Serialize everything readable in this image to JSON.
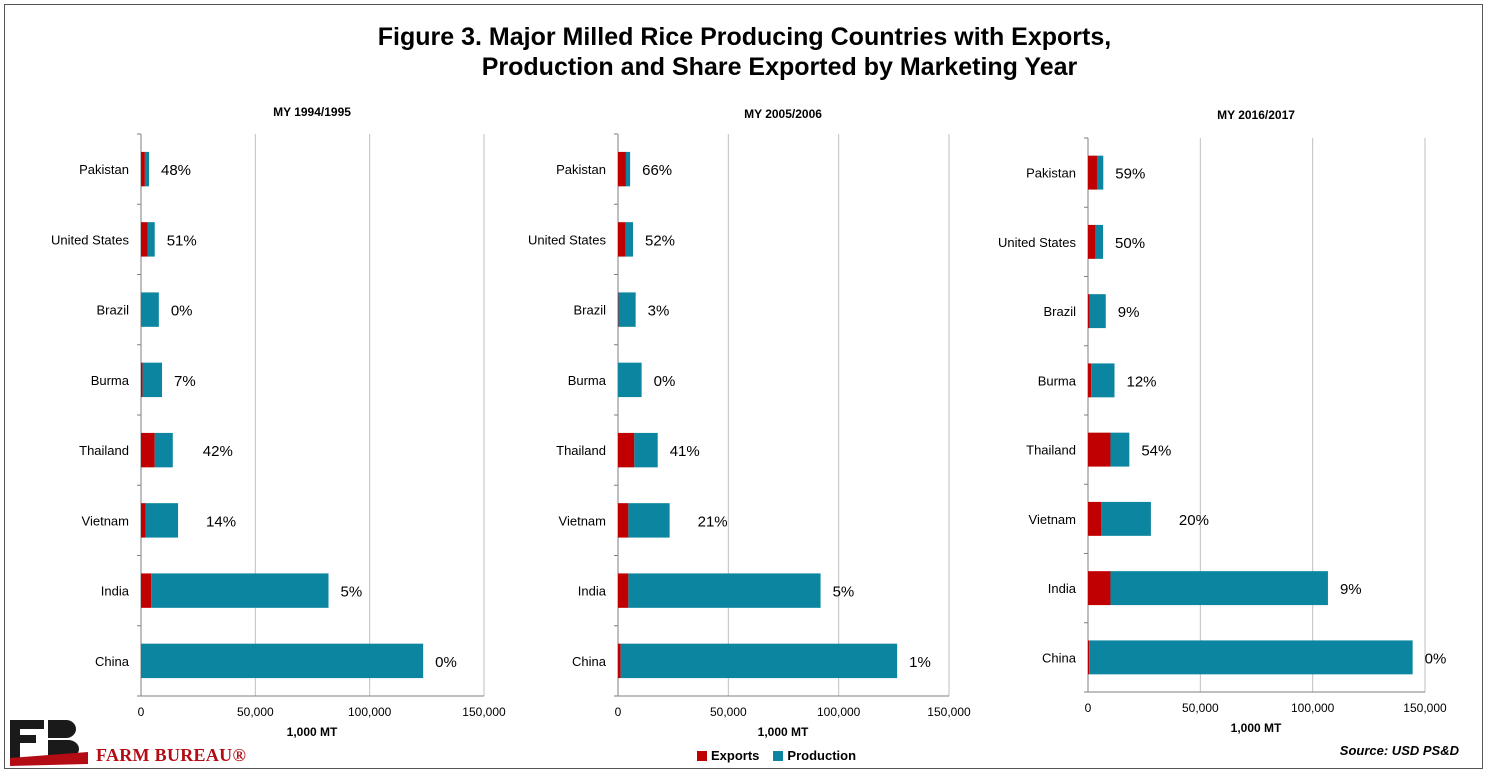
{
  "title_line1": "Figure 3. Major Milled Rice Producing Countries with Exports,",
  "title_line2": "Production and Share Exported by Marketing Year",
  "source": "Source: USD PS&D",
  "logo_text": "FARM BUREAU®",
  "colors": {
    "exports": "#c00000",
    "production": "#0c86a0",
    "grid": "#bfbfbf",
    "axis": "#7f7f7f"
  },
  "legend": [
    {
      "name": "Exports",
      "color": "#c00000"
    },
    {
      "name": "Production",
      "color": "#0c86a0"
    }
  ],
  "chart_data": [
    {
      "type": "bar",
      "orientation": "horizontal",
      "stacked": true,
      "title": "MY 1994/1995",
      "xlabel": "1,000 MT",
      "xlim": [
        0,
        150000
      ],
      "xticks": [
        "0",
        "50,000",
        "100,000",
        "150,000"
      ],
      "categories": [
        "Pakistan",
        "United States",
        "Brazil",
        "Burma",
        "Thailand",
        "Vietnam",
        "India",
        "China"
      ],
      "series": [
        {
          "name": "Exports",
          "values": [
            1700,
            3000,
            0,
            700,
            6000,
            2000,
            4500,
            100
          ]
        },
        {
          "name": "Production",
          "values": [
            1800,
            3000,
            7800,
            8500,
            7900,
            14200,
            77500,
            123300
          ]
        }
      ],
      "share_labels": [
        "48%",
        "51%",
        "0%",
        "7%",
        "42%",
        "14%",
        "5%",
        "0%"
      ]
    },
    {
      "type": "bar",
      "orientation": "horizontal",
      "stacked": true,
      "title": "MY 2005/2006",
      "xlabel": "1,000 MT",
      "xlim": [
        0,
        150000
      ],
      "xticks": [
        "0",
        "50,000",
        "100,000",
        "150,000"
      ],
      "categories": [
        "Pakistan",
        "United States",
        "Brazil",
        "Burma",
        "Thailand",
        "Vietnam",
        "India",
        "China"
      ],
      "series": [
        {
          "name": "Exports",
          "values": [
            3600,
            3500,
            200,
            0,
            7400,
            4700,
            4700,
            1200
          ]
        },
        {
          "name": "Production",
          "values": [
            1900,
            3300,
            7800,
            10700,
            10600,
            18700,
            87100,
            125300
          ]
        }
      ],
      "share_labels": [
        "66%",
        "52%",
        "3%",
        "0%",
        "41%",
        "21%",
        "5%",
        "1%"
      ]
    },
    {
      "type": "bar",
      "orientation": "horizontal",
      "stacked": true,
      "title": "MY 2016/2017",
      "xlabel": "1,000 MT",
      "xlim": [
        0,
        150000
      ],
      "xticks": [
        "0",
        "50,000",
        "100,000",
        "150,000"
      ],
      "categories": [
        "Pakistan",
        "United States",
        "Brazil",
        "Burma",
        "Thailand",
        "Vietnam",
        "India",
        "China"
      ],
      "series": [
        {
          "name": "Exports",
          "values": [
            4000,
            3300,
            700,
            1400,
            10000,
            5800,
            10000,
            500
          ]
        },
        {
          "name": "Production",
          "values": [
            2800,
            3400,
            7200,
            10400,
            8400,
            22200,
            96800,
            144000
          ]
        }
      ],
      "share_labels": [
        "59%",
        "50%",
        "9%",
        "12%",
        "54%",
        "20%",
        "9%",
        "0%"
      ]
    }
  ]
}
